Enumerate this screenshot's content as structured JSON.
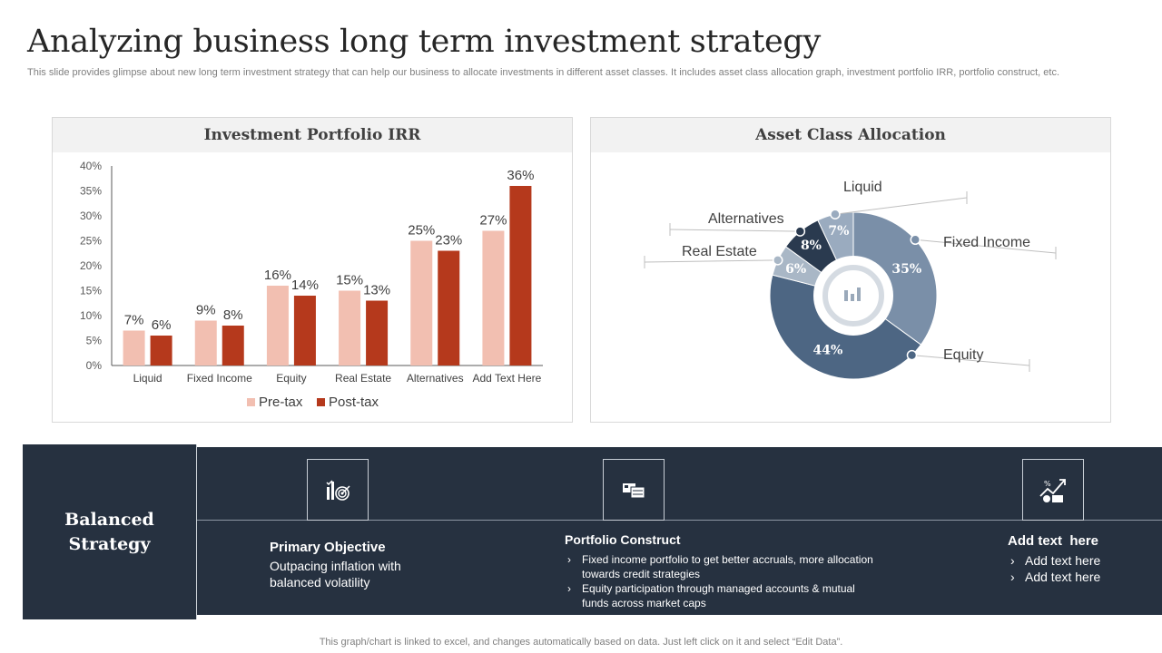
{
  "title": "Analyzing business long term investment strategy",
  "subtitle": "This slide provides glimpse about new long term investment strategy that can help our business to allocate investments in different asset classes. It includes asset class allocation graph, investment portfolio IRR, portfolio construct, etc.",
  "colors": {
    "pretax": "#f2bfb1",
    "posttax": "#b5391c",
    "dark": "#263140"
  },
  "chart_data": [
    {
      "type": "bar",
      "title": "Investment Portfolio IRR",
      "categories": [
        "Liquid",
        "Fixed Income",
        "Equity",
        "Real Estate",
        "Alternatives",
        "Add Text Here"
      ],
      "series": [
        {
          "name": "Pre-tax",
          "values": [
            7,
            9,
            16,
            15,
            25,
            27
          ],
          "labels": [
            "7%",
            "9%",
            "16%",
            "15%",
            "25%",
            "27%"
          ]
        },
        {
          "name": "Post-tax",
          "values": [
            6,
            8,
            14,
            13,
            23,
            36
          ],
          "labels": [
            "6%",
            "8%",
            "14%",
            "13%",
            "23%",
            "36%"
          ]
        }
      ],
      "yticks": [
        "0%",
        "5%",
        "10%",
        "15%",
        "20%",
        "25%",
        "30%",
        "35%",
        "40%"
      ],
      "ylim": [
        0,
        40
      ],
      "legend": "bottom"
    },
    {
      "type": "pie",
      "title": "Asset Class Allocation",
      "slices": [
        {
          "name": "Fixed Income",
          "value": 35,
          "label": "35%",
          "color": "#7a8fa8"
        },
        {
          "name": "Equity",
          "value": 44,
          "label": "44%",
          "color": "#4d6683"
        },
        {
          "name": "Real Estate",
          "value": 6,
          "label": "6%",
          "color": "#a9b7c6"
        },
        {
          "name": "Alternatives",
          "value": 8,
          "label": "8%",
          "color": "#2a3a4f"
        },
        {
          "name": "Liquid",
          "value": 7,
          "label": "7%",
          "color": "#9aabbf"
        }
      ],
      "hole": "donut with centre chart icon"
    }
  ],
  "strategy": {
    "label_line1": "Balanced",
    "label_line2": "Strategy",
    "primary": {
      "title": "Primary Objective",
      "text": "Outpacing inflation with balanced volatility"
    },
    "portfolio": {
      "title": "Portfolio Construct",
      "bullets": [
        "Fixed income portfolio to get better accruals, more allocation towards credit strategies",
        "Equity participation through managed accounts & mutual funds across market caps"
      ]
    },
    "addtext": {
      "title": "Add text  here",
      "bullets": [
        "Add text here",
        "Add text here"
      ]
    },
    "icons": [
      "target-chart-icon",
      "portfolio-cards-icon",
      "growth-money-icon"
    ]
  },
  "footer": "This graph/chart is linked to excel,  and changes automatically based on data. Just left click on it and select “Edit Data”."
}
